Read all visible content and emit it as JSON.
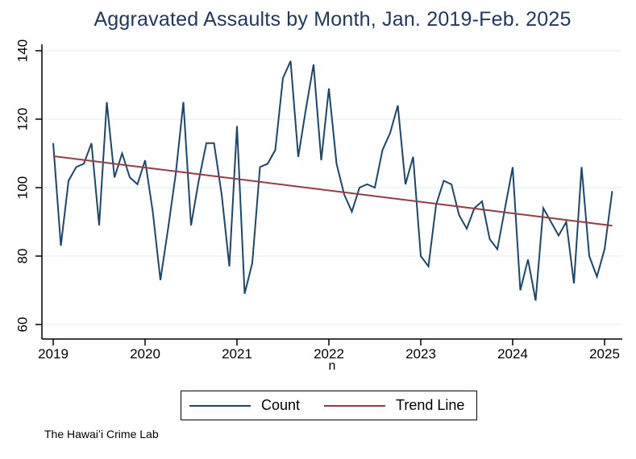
{
  "figure": {
    "title": "Aggravated Assaults by Month, Jan. 2019-Feb. 2025",
    "caption": "The Hawaiʻi Crime Lab"
  },
  "chart_data": {
    "type": "line",
    "title": "Aggravated Assaults by Month, Jan. 2019-Feb. 2025",
    "xlabel": "n",
    "ylabel": "",
    "x_tick_labels": [
      "2019",
      "2020",
      "2021",
      "2022",
      "2023",
      "2024",
      "2025"
    ],
    "y_tick_labels": [
      "60",
      "80",
      "100",
      "120",
      "140"
    ],
    "y_ticks": [
      60,
      80,
      100,
      120,
      140
    ],
    "ylim": [
      60,
      140
    ],
    "months_start": "2019-01",
    "months_end": "2025-02",
    "grid": true,
    "legend_position": "bottom",
    "series": [
      {
        "name": "Count",
        "color": "#1a476f",
        "values": [
          113,
          83,
          102,
          106,
          107,
          113,
          89,
          125,
          103,
          110,
          103,
          101,
          108,
          93,
          73,
          88,
          104,
          125,
          89,
          102,
          113,
          113,
          98,
          77,
          118,
          69,
          78,
          106,
          107,
          111,
          132,
          137,
          109,
          123,
          136,
          108,
          129,
          107,
          98,
          93,
          100,
          101,
          100,
          111,
          116,
          124,
          101,
          109,
          80,
          77,
          95,
          102,
          101,
          92,
          88,
          94,
          96,
          85,
          82,
          94,
          106,
          70,
          79,
          67,
          94,
          90,
          86,
          90,
          72,
          106,
          80,
          74,
          82,
          99
        ]
      },
      {
        "name": "Trend Line",
        "color": "#9c3a40",
        "trend": {
          "start": 109.2,
          "end": 88.9
        }
      }
    ],
    "colors": {
      "count_line": "#1a476f",
      "trend_line": "#9c3a40",
      "gridline": "#dfecee",
      "axis": "#000000",
      "title_text": "#1f3864",
      "tick_text": "#000000"
    }
  }
}
